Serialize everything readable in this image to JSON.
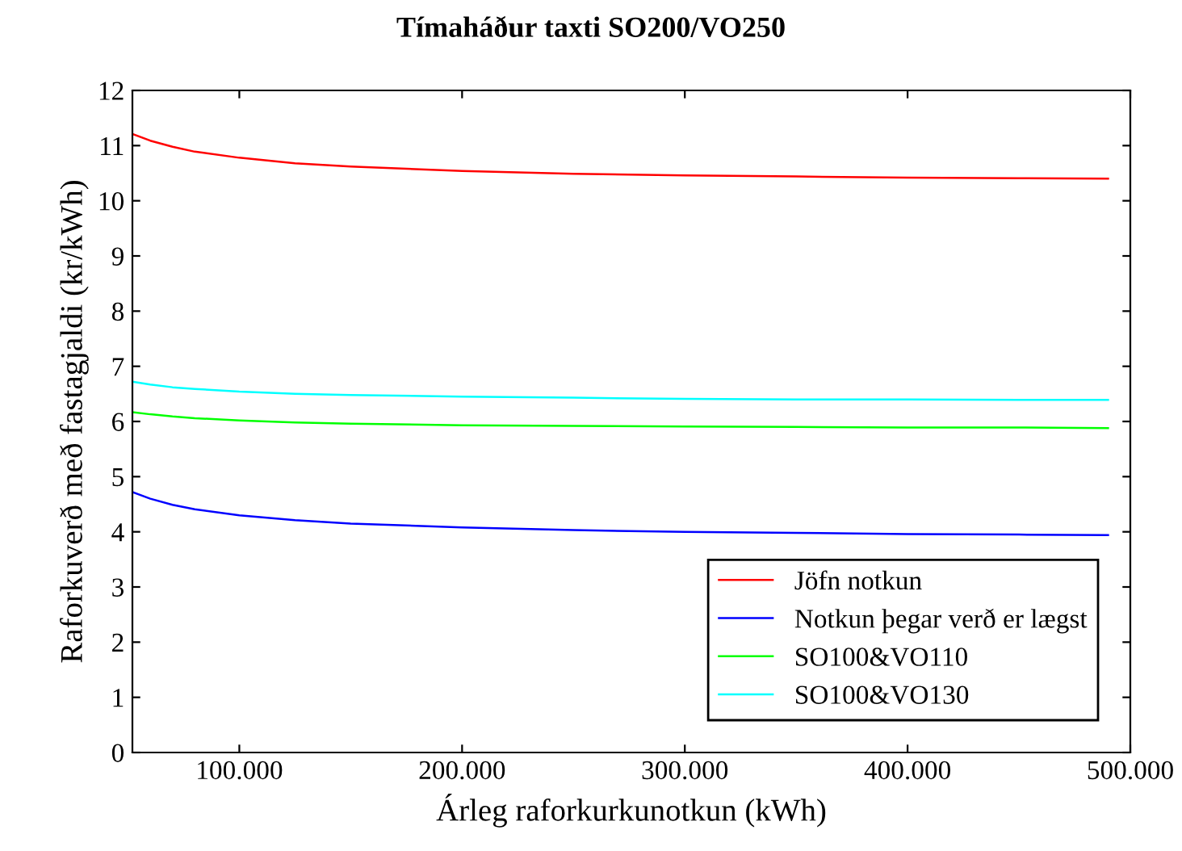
{
  "chart_data": {
    "type": "line",
    "title": "Tímaháður taxti SO200/VO250",
    "xlabel": "Árleg raforkurkunotkun (kWh)",
    "ylabel": "Raforkuverð með fastagjaldi (kr/kWh)",
    "x": [
      52000,
      60000,
      70000,
      80000,
      100000,
      125000,
      150000,
      200000,
      250000,
      300000,
      350000,
      400000,
      450000,
      490000
    ],
    "series": [
      {
        "name": "Jöfn notkun",
        "color": "#ff0000",
        "values": [
          11.21,
          11.09,
          10.98,
          10.89,
          10.78,
          10.68,
          10.62,
          10.54,
          10.49,
          10.46,
          10.44,
          10.42,
          10.41,
          10.4
        ]
      },
      {
        "name": "Notkun þegar verð er lægst",
        "color": "#0000ff",
        "values": [
          4.72,
          4.6,
          4.49,
          4.41,
          4.3,
          4.21,
          4.15,
          4.08,
          4.03,
          4.0,
          3.98,
          3.96,
          3.95,
          3.94
        ]
      },
      {
        "name": "SO100&VO110",
        "color": "#00ff00",
        "values": [
          6.17,
          6.13,
          6.09,
          6.06,
          6.02,
          5.98,
          5.96,
          5.93,
          5.92,
          5.91,
          5.9,
          5.89,
          5.89,
          5.88
        ]
      },
      {
        "name": "SO100&VO130",
        "color": "#00ffff",
        "values": [
          6.72,
          6.67,
          6.62,
          6.59,
          6.54,
          6.5,
          6.48,
          6.45,
          6.43,
          6.41,
          6.4,
          6.4,
          6.39,
          6.39
        ]
      }
    ],
    "xlim": [
      52000,
      500000
    ],
    "xticks": [
      {
        "value": 100000,
        "label": "100.000"
      },
      {
        "value": 200000,
        "label": "200.000"
      },
      {
        "value": 300000,
        "label": "300.000"
      },
      {
        "value": 400000,
        "label": "400.000"
      },
      {
        "value": 500000,
        "label": "500.000"
      }
    ],
    "ylim": [
      0,
      12
    ],
    "yticks": [
      0,
      1,
      2,
      3,
      4,
      5,
      6,
      7,
      8,
      9,
      10,
      11,
      12
    ],
    "grid": false,
    "legend": "bottom right",
    "marker": "none",
    "line_style": "solid"
  }
}
